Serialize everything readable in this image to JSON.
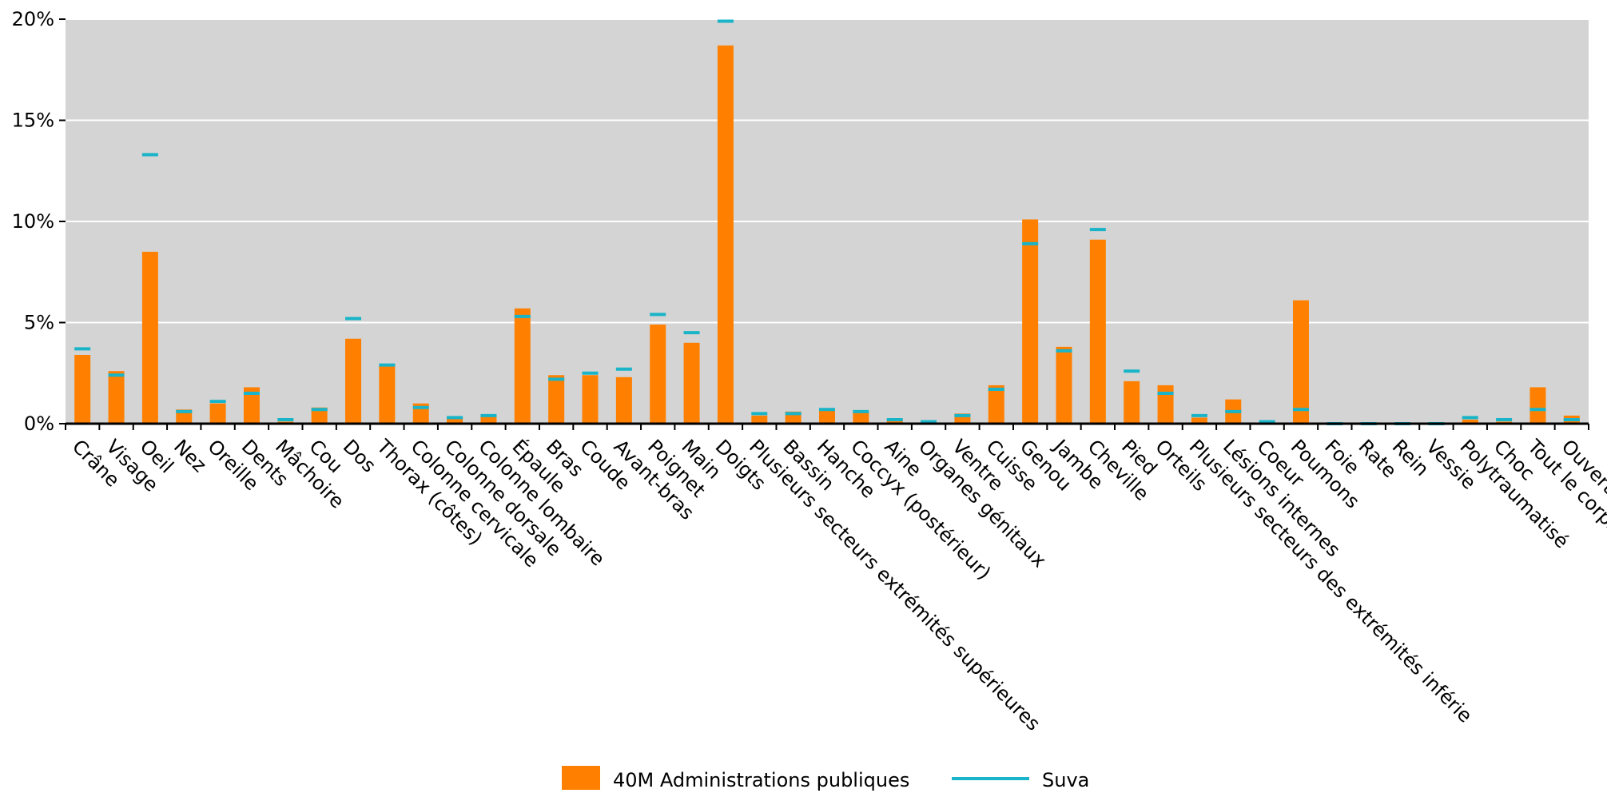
{
  "chart_data": {
    "type": "bar",
    "title": "",
    "xlabel": "",
    "ylabel": "",
    "ylim": [
      0,
      20
    ],
    "y_ticks": [
      "0%",
      "5%",
      "10%",
      "15%",
      "20%"
    ],
    "y_tick_values": [
      0,
      5,
      10,
      15,
      20
    ],
    "grid": true,
    "legend_position": "bottom-center",
    "categories": [
      "Crâne",
      "Visage",
      "Oeil",
      "Nez",
      "Oreille",
      "Dents",
      "Mâchoire",
      "Cou",
      "Dos",
      "Thorax (côtes)",
      "Colonne cervicale",
      "Colonne dorsale",
      "Colonne lombaire",
      "Épaule",
      "Bras",
      "Coude",
      "Avant-bras",
      "Poignet",
      "Main",
      "Doigts",
      "Plusieurs secteurs extrémités supérieures",
      "Bassin",
      "Hanche",
      "Coccyx (postérieur)",
      "Aine",
      "Organes génitaux",
      "Ventre",
      "Cuisse",
      "Genou",
      "Jambe",
      "Cheville",
      "Pied",
      "Orteils",
      "Plusieurs secteurs des extrémités inférie",
      "Lésions internes",
      "Coeur",
      "Poumons",
      "Foie",
      "Rate",
      "Rein",
      "Vessie",
      "Polytraumatisé",
      "Choc",
      "Tout le corps",
      "Ouvert"
    ],
    "series": [
      {
        "name": "40M Administrations publiques",
        "kind": "bar",
        "color": "#ff8000",
        "values": [
          3.4,
          2.6,
          8.5,
          0.7,
          1.0,
          1.8,
          0.1,
          0.8,
          4.2,
          2.9,
          1.0,
          0.3,
          0.4,
          5.7,
          2.4,
          2.4,
          2.3,
          4.9,
          4.0,
          18.7,
          0.4,
          0.6,
          0.7,
          0.6,
          0.2,
          0.0,
          0.5,
          1.9,
          10.1,
          3.8,
          9.1,
          2.1,
          1.9,
          0.3,
          1.2,
          0.0,
          6.1,
          0.0,
          0.0,
          0.0,
          0.0,
          0.2,
          0.1,
          1.8,
          0.4
        ]
      },
      {
        "name": "Suva",
        "kind": "marker",
        "color": "#19b4c8",
        "values": [
          3.7,
          2.4,
          13.3,
          0.6,
          1.1,
          1.5,
          0.2,
          0.7,
          5.2,
          2.9,
          0.8,
          0.3,
          0.4,
          5.3,
          2.2,
          2.5,
          2.7,
          5.4,
          4.5,
          19.9,
          0.5,
          0.5,
          0.7,
          0.6,
          0.2,
          0.1,
          0.4,
          1.7,
          8.9,
          3.6,
          9.6,
          2.6,
          1.5,
          0.4,
          0.6,
          0.1,
          0.7,
          0.0,
          0.0,
          0.0,
          0.0,
          0.3,
          0.2,
          0.7,
          0.2
        ]
      }
    ]
  }
}
